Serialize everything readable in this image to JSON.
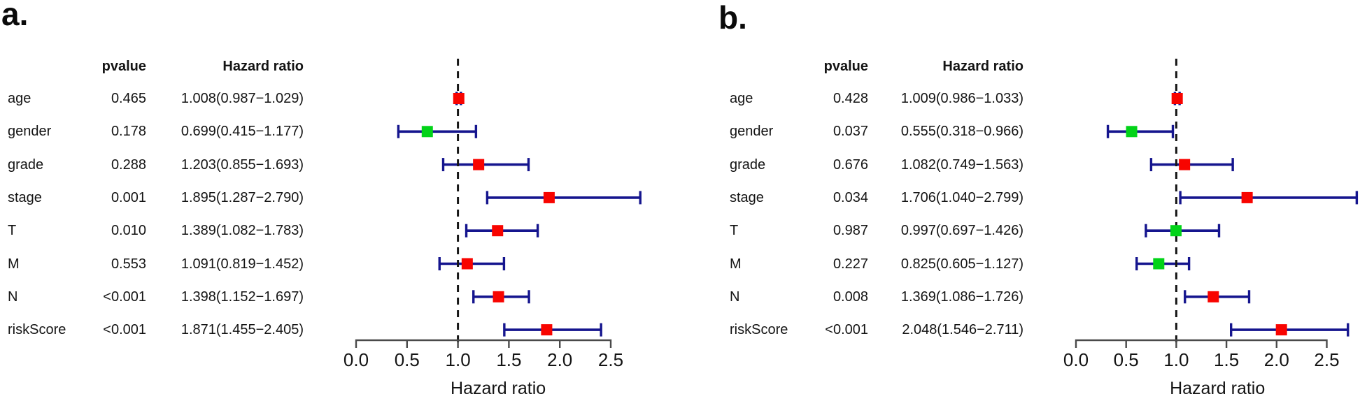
{
  "figure": {
    "background": "#ffffff",
    "colors": {
      "marker_red": "#f80400",
      "marker_green": "#02d318",
      "ci_bar": "#15158e",
      "reference_line": "#161616",
      "axis": "#4a4a4a",
      "text": "#141414"
    }
  },
  "chart_data": [
    {
      "type": "forest",
      "panel_label": "a.",
      "columns": [
        "pvalue",
        "Hazard ratio"
      ],
      "xlabel": "Hazard ratio",
      "x_ticks": [
        "0.0",
        "0.5",
        "1.0",
        "1.5",
        "2.0",
        "2.5"
      ],
      "xlim": [
        0,
        2.79
      ],
      "reference_x": 1.0,
      "rows": [
        {
          "label": "age",
          "pvalue": "0.465",
          "hr_text": "1.008(0.987−1.029)",
          "hr": 1.008,
          "low": 0.987,
          "high": 1.029,
          "marker": "red"
        },
        {
          "label": "gender",
          "pvalue": "0.178",
          "hr_text": "0.699(0.415−1.177)",
          "hr": 0.699,
          "low": 0.415,
          "high": 1.177,
          "marker": "green"
        },
        {
          "label": "grade",
          "pvalue": "0.288",
          "hr_text": "1.203(0.855−1.693)",
          "hr": 1.203,
          "low": 0.855,
          "high": 1.693,
          "marker": "red"
        },
        {
          "label": "stage",
          "pvalue": "0.001",
          "hr_text": "1.895(1.287−2.790)",
          "hr": 1.895,
          "low": 1.287,
          "high": 2.79,
          "marker": "red"
        },
        {
          "label": "T",
          "pvalue": "0.010",
          "hr_text": "1.389(1.082−1.783)",
          "hr": 1.389,
          "low": 1.082,
          "high": 1.783,
          "marker": "red"
        },
        {
          "label": "M",
          "pvalue": "0.553",
          "hr_text": "1.091(0.819−1.452)",
          "hr": 1.091,
          "low": 0.819,
          "high": 1.452,
          "marker": "red"
        },
        {
          "label": "N",
          "pvalue": "<0.001",
          "hr_text": "1.398(1.152−1.697)",
          "hr": 1.398,
          "low": 1.152,
          "high": 1.697,
          "marker": "red"
        },
        {
          "label": "riskScore",
          "pvalue": "<0.001",
          "hr_text": "1.871(1.455−2.405)",
          "hr": 1.871,
          "low": 1.455,
          "high": 2.405,
          "marker": "red"
        }
      ]
    },
    {
      "type": "forest",
      "panel_label": "b.",
      "columns": [
        "pvalue",
        "Hazard ratio"
      ],
      "xlabel": "Hazard ratio",
      "x_ticks": [
        "0.0",
        "0.5",
        "1.0",
        "1.5",
        "2.0",
        "2.5"
      ],
      "xlim": [
        0,
        2.82
      ],
      "reference_x": 1.0,
      "rows": [
        {
          "label": "age",
          "pvalue": "0.428",
          "hr_text": "1.009(0.986−1.033)",
          "hr": 1.009,
          "low": 0.986,
          "high": 1.033,
          "marker": "red"
        },
        {
          "label": "gender",
          "pvalue": "0.037",
          "hr_text": "0.555(0.318−0.966)",
          "hr": 0.555,
          "low": 0.318,
          "high": 0.966,
          "marker": "green"
        },
        {
          "label": "grade",
          "pvalue": "0.676",
          "hr_text": "1.082(0.749−1.563)",
          "hr": 1.082,
          "low": 0.749,
          "high": 1.563,
          "marker": "red"
        },
        {
          "label": "stage",
          "pvalue": "0.034",
          "hr_text": "1.706(1.040−2.799)",
          "hr": 1.706,
          "low": 1.04,
          "high": 2.799,
          "marker": "red"
        },
        {
          "label": "T",
          "pvalue": "0.987",
          "hr_text": "0.997(0.697−1.426)",
          "hr": 0.997,
          "low": 0.697,
          "high": 1.426,
          "marker": "green"
        },
        {
          "label": "M",
          "pvalue": "0.227",
          "hr_text": "0.825(0.605−1.127)",
          "hr": 0.825,
          "low": 0.605,
          "high": 1.127,
          "marker": "green"
        },
        {
          "label": "N",
          "pvalue": "0.008",
          "hr_text": "1.369(1.086−1.726)",
          "hr": 1.369,
          "low": 1.086,
          "high": 1.726,
          "marker": "red"
        },
        {
          "label": "riskScore",
          "pvalue": "<0.001",
          "hr_text": "2.048(1.546−2.711)",
          "hr": 2.048,
          "low": 1.546,
          "high": 2.711,
          "marker": "red"
        }
      ]
    }
  ]
}
